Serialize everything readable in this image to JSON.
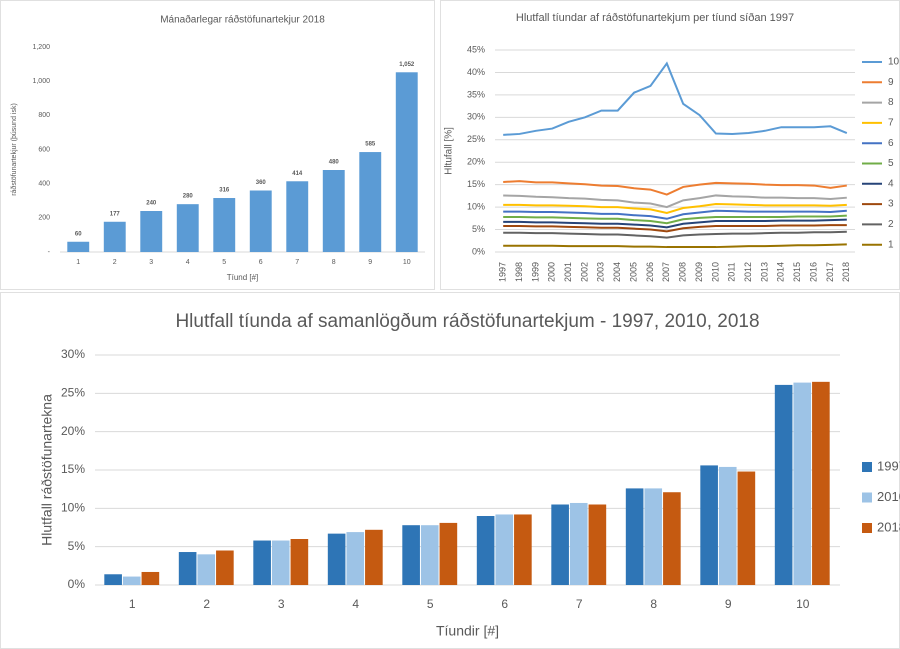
{
  "chart_data": [
    {
      "type": "bar",
      "title": "Mánaðarlegar ráðstöfunartekjur 2018",
      "y_label": "ráðstöfunartekjur (þúsund isk)",
      "x_label": "Tíund [#]",
      "categories": [
        "1",
        "2",
        "3",
        "4",
        "5",
        "6",
        "7",
        "8",
        "9",
        "10"
      ],
      "values": [
        60,
        177,
        240,
        280,
        316,
        360,
        414,
        480,
        585,
        1052
      ],
      "value_labels": [
        "60",
        "177",
        "240",
        "280",
        "316",
        "360",
        "414",
        "480",
        "585",
        "1,052"
      ],
      "color": "#5b9bd5",
      "ylim": [
        0,
        1200
      ],
      "yticks": [
        {
          "value": 0,
          "label": "-"
        },
        200,
        400,
        600,
        800,
        {
          "value": 1000,
          "label": "1,000"
        },
        {
          "value": 1200,
          "label": "1,200"
        }
      ],
      "grid": false
    },
    {
      "type": "line",
      "title": "Hlutfall tíundar af ráðstöfunartekjum per tíund síðan 1997",
      "y_label": "Hltufall [%]",
      "categories": [
        "1997",
        "1998",
        "1999",
        "2000",
        "2001",
        "2002",
        "2003",
        "2004",
        "2005",
        "2006",
        "2007",
        "2008",
        "2009",
        "2010",
        "2011",
        "2012",
        "2013",
        "2014",
        "2015",
        "2016",
        "2017",
        "2018"
      ],
      "series": [
        {
          "name": "10",
          "color": "#5b9bd5",
          "values": [
            26.1,
            26.3,
            27,
            27.5,
            29,
            30,
            31.5,
            31.5,
            35.5,
            37,
            42,
            33,
            30.5,
            26.4,
            26.3,
            26.5,
            27,
            27.8,
            27.8,
            27.8,
            28,
            26.5
          ]
        },
        {
          "name": "9",
          "color": "#ed7d31",
          "values": [
            15.6,
            15.8,
            15.5,
            15.5,
            15.3,
            15.1,
            14.8,
            14.7,
            14.2,
            13.9,
            12.8,
            14.5,
            15,
            15.4,
            15.3,
            15.2,
            15,
            14.9,
            14.9,
            14.8,
            14.3,
            14.8
          ]
        },
        {
          "name": "8",
          "color": "#a5a5a5",
          "values": [
            12.6,
            12.5,
            12.3,
            12.2,
            12,
            11.9,
            11.6,
            11.5,
            11,
            10.8,
            10,
            11.5,
            12,
            12.6,
            12.4,
            12.3,
            12.1,
            12.1,
            12,
            12,
            11.8,
            12.1
          ]
        },
        {
          "name": "7",
          "color": "#ffc000",
          "values": [
            10.5,
            10.5,
            10.4,
            10.4,
            10.3,
            10.2,
            10,
            10,
            9.7,
            9.5,
            8.7,
            9.8,
            10.2,
            10.7,
            10.6,
            10.5,
            10.4,
            10.4,
            10.4,
            10.4,
            10.3,
            10.5
          ]
        },
        {
          "name": "6",
          "color": "#4472c4",
          "values": [
            9,
            9,
            8.9,
            8.9,
            8.8,
            8.7,
            8.5,
            8.5,
            8.2,
            8,
            7.4,
            8.4,
            8.8,
            9.2,
            9.1,
            9,
            9,
            9,
            9,
            9,
            8.9,
            9.2
          ]
        },
        {
          "name": "5",
          "color": "#70ad47",
          "values": [
            7.8,
            7.8,
            7.7,
            7.7,
            7.6,
            7.5,
            7.4,
            7.4,
            7.1,
            6.9,
            6.4,
            7.3,
            7.6,
            7.8,
            7.8,
            7.8,
            7.8,
            7.8,
            7.9,
            7.9,
            7.9,
            8.1
          ]
        },
        {
          "name": "4",
          "color": "#264478",
          "values": [
            6.7,
            6.7,
            6.6,
            6.6,
            6.5,
            6.4,
            6.3,
            6.3,
            6.1,
            5.9,
            5.5,
            6.3,
            6.6,
            6.9,
            6.9,
            6.9,
            6.9,
            7,
            7,
            7,
            7.1,
            7.2
          ]
        },
        {
          "name": "3",
          "color": "#9e480e",
          "values": [
            5.8,
            5.8,
            5.7,
            5.7,
            5.6,
            5.5,
            5.4,
            5.4,
            5.2,
            5,
            4.6,
            5.3,
            5.6,
            5.8,
            5.8,
            5.8,
            5.8,
            5.9,
            5.9,
            5.9,
            6,
            6
          ]
        },
        {
          "name": "2",
          "color": "#636363",
          "values": [
            4.3,
            4.3,
            4.2,
            4.2,
            4.1,
            4,
            3.9,
            3.9,
            3.7,
            3.5,
            3.2,
            3.7,
            3.9,
            4,
            4.1,
            4.1,
            4.2,
            4.3,
            4.3,
            4.4,
            4.4,
            4.5
          ]
        },
        {
          "name": "1",
          "color": "#997300",
          "values": [
            1.4,
            1.4,
            1.4,
            1.4,
            1.3,
            1.3,
            1.3,
            1.3,
            1.2,
            1.2,
            1.1,
            1.1,
            1.1,
            1.1,
            1.2,
            1.3,
            1.3,
            1.4,
            1.5,
            1.5,
            1.6,
            1.7
          ]
        }
      ],
      "ylim": [
        0,
        45
      ],
      "yticks": [
        {
          "value": 0,
          "label": "0%"
        },
        {
          "value": 5,
          "label": "5%"
        },
        {
          "value": 10,
          "label": "10%"
        },
        {
          "value": 15,
          "label": "15%"
        },
        {
          "value": 20,
          "label": "20%"
        },
        {
          "value": 25,
          "label": "25%"
        },
        {
          "value": 30,
          "label": "30%"
        },
        {
          "value": 35,
          "label": "35%"
        },
        {
          "value": 40,
          "label": "40%"
        },
        {
          "value": 45,
          "label": "45%"
        }
      ],
      "grid": true,
      "legend": "right"
    },
    {
      "type": "grouped-bar",
      "title": "Hlutfall tíunda af samanlögðum ráðstöfunartekjum - 1997, 2010, 2018",
      "y_label": "Hlutfall ráðstöfunartekna",
      "x_label": "Tíundir [#]",
      "categories": [
        "1",
        "2",
        "3",
        "4",
        "5",
        "6",
        "7",
        "8",
        "9",
        "10"
      ],
      "series": [
        {
          "name": "1997",
          "color": "#2e75b6",
          "values": [
            1.4,
            4.3,
            5.8,
            6.7,
            7.8,
            9,
            10.5,
            12.6,
            15.6,
            26.1
          ]
        },
        {
          "name": "2010",
          "color": "#9dc3e6",
          "values": [
            1.1,
            4,
            5.8,
            6.9,
            7.8,
            9.2,
            10.7,
            12.6,
            15.4,
            26.4
          ]
        },
        {
          "name": "2018",
          "color": "#c55a11",
          "values": [
            1.7,
            4.5,
            6,
            7.2,
            8.1,
            9.2,
            10.5,
            12.1,
            14.8,
            26.5
          ]
        }
      ],
      "ylim": [
        0,
        30
      ],
      "yticks": [
        {
          "value": 0,
          "label": "0%"
        },
        {
          "value": 5,
          "label": "5%"
        },
        {
          "value": 10,
          "label": "10%"
        },
        {
          "value": 15,
          "label": "15%"
        },
        {
          "value": 20,
          "label": "20%"
        },
        {
          "value": 25,
          "label": "25%"
        },
        {
          "value": 30,
          "label": "30%"
        }
      ],
      "grid": true,
      "legend": "right"
    }
  ]
}
